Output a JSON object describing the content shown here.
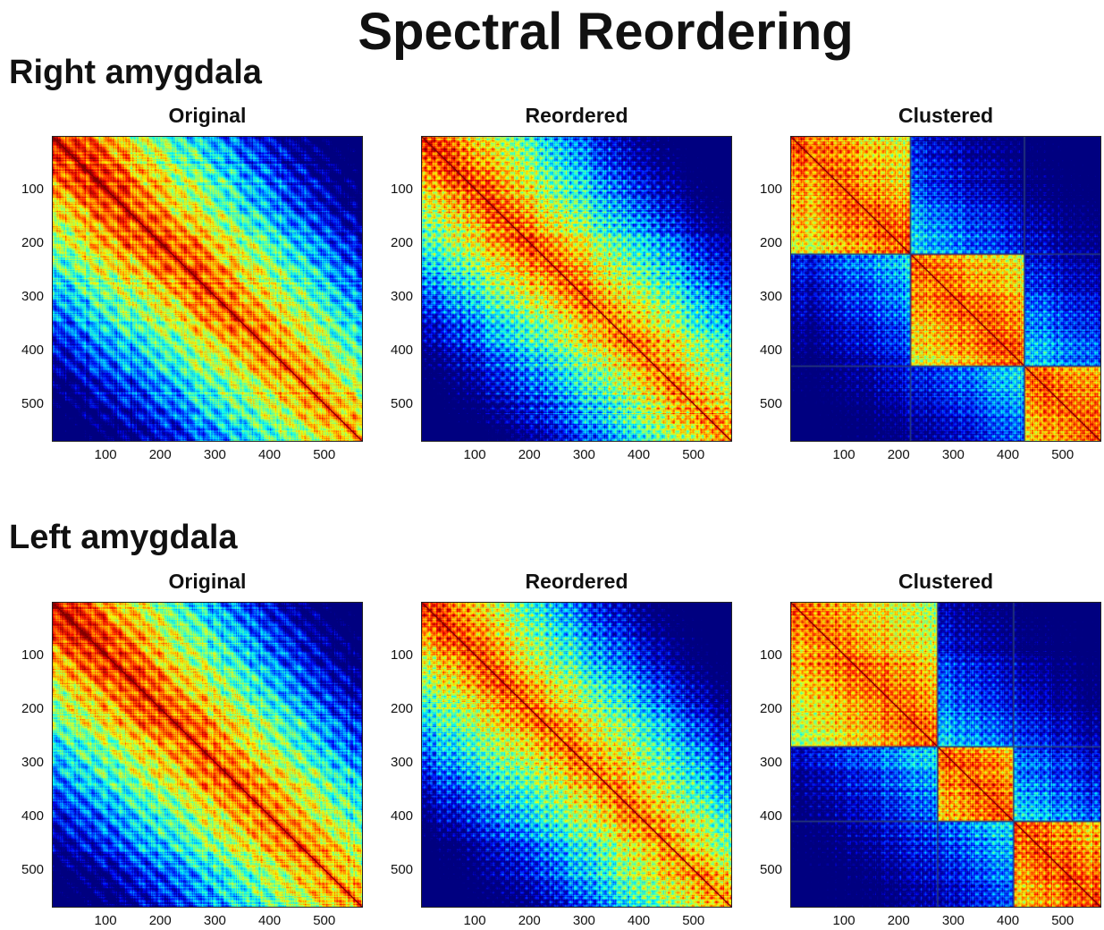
{
  "title": "Spectral Reordering",
  "sections": [
    {
      "label": "Right amygdala"
    },
    {
      "label": "Left amygdala"
    }
  ],
  "chart_data": [
    {
      "type": "heatmap",
      "section": "Right amygdala",
      "title": "Original",
      "size": 570,
      "xlim": [
        1,
        570
      ],
      "ylim": [
        1,
        570
      ],
      "xticks": [
        100,
        200,
        300,
        400,
        500
      ],
      "yticks": [
        100,
        200,
        300,
        400,
        500
      ],
      "clusters": [],
      "colormap": "jet"
    },
    {
      "type": "heatmap",
      "section": "Right amygdala",
      "title": "Reordered",
      "size": 570,
      "xlim": [
        1,
        570
      ],
      "ylim": [
        1,
        570
      ],
      "xticks": [
        100,
        200,
        300,
        400,
        500
      ],
      "yticks": [
        100,
        200,
        300,
        400,
        500
      ],
      "clusters": [],
      "colormap": "jet"
    },
    {
      "type": "heatmap",
      "section": "Right amygdala",
      "title": "Clustered",
      "size": 570,
      "xlim": [
        1,
        570
      ],
      "ylim": [
        1,
        570
      ],
      "xticks": [
        100,
        200,
        300,
        400,
        500
      ],
      "yticks": [
        100,
        200,
        300,
        400,
        500
      ],
      "clusters": [
        220,
        430
      ],
      "colormap": "jet"
    },
    {
      "type": "heatmap",
      "section": "Left amygdala",
      "title": "Original",
      "size": 570,
      "xlim": [
        1,
        570
      ],
      "ylim": [
        1,
        570
      ],
      "xticks": [
        100,
        200,
        300,
        400,
        500
      ],
      "yticks": [
        100,
        200,
        300,
        400,
        500
      ],
      "clusters": [],
      "colormap": "jet"
    },
    {
      "type": "heatmap",
      "section": "Left amygdala",
      "title": "Reordered",
      "size": 570,
      "xlim": [
        1,
        570
      ],
      "ylim": [
        1,
        570
      ],
      "xticks": [
        100,
        200,
        300,
        400,
        500
      ],
      "yticks": [
        100,
        200,
        300,
        400,
        500
      ],
      "clusters": [],
      "colormap": "jet"
    },
    {
      "type": "heatmap",
      "section": "Left amygdala",
      "title": "Clustered",
      "size": 570,
      "xlim": [
        1,
        570
      ],
      "ylim": [
        1,
        570
      ],
      "xticks": [
        100,
        200,
        300,
        400,
        500
      ],
      "yticks": [
        100,
        200,
        300,
        400,
        500
      ],
      "clusters": [
        270,
        410
      ],
      "colormap": "jet"
    }
  ]
}
